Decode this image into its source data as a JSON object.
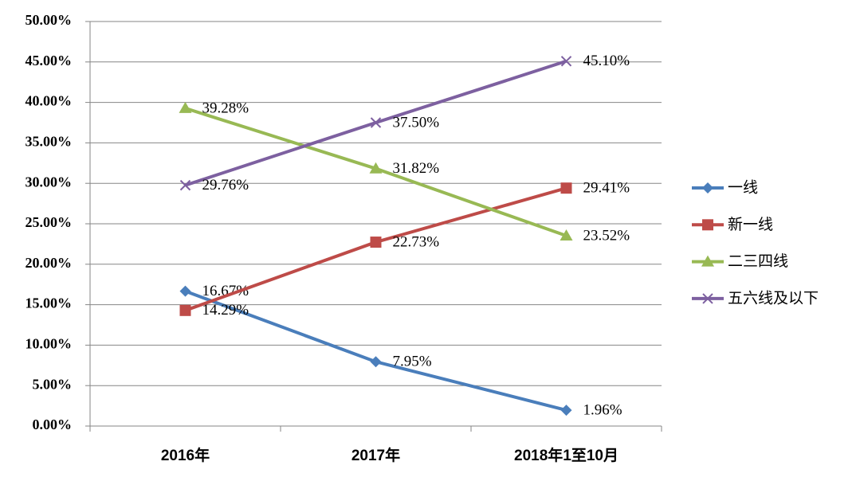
{
  "chart_data": {
    "type": "line",
    "categories": [
      "2016年",
      "2017年",
      "2018年1至10月"
    ],
    "ylim": [
      0,
      50
    ],
    "yticks": [
      {
        "value": 0,
        "label": "0.00%"
      },
      {
        "value": 5,
        "label": "5.00%"
      },
      {
        "value": 10,
        "label": "10.00%"
      },
      {
        "value": 15,
        "label": "15.00%"
      },
      {
        "value": 20,
        "label": "20.00%"
      },
      {
        "value": 25,
        "label": "25.00%"
      },
      {
        "value": 30,
        "label": "30.00%"
      },
      {
        "value": 35,
        "label": "35.00%"
      },
      {
        "value": 40,
        "label": "40.00%"
      },
      {
        "value": 45,
        "label": "45.00%"
      },
      {
        "value": 50,
        "label": "50.00%"
      }
    ],
    "grid": true,
    "legend": "right",
    "series": [
      {
        "name": "一线",
        "color": "#4a7ebb",
        "marker": "diamond",
        "values": [
          16.67,
          7.95,
          1.96
        ],
        "value_labels": [
          "16.67%",
          "7.95%",
          "1.96%"
        ]
      },
      {
        "name": "新一线",
        "color": "#be4b48",
        "marker": "square",
        "values": [
          14.29,
          22.73,
          29.41
        ],
        "value_labels": [
          "14.29%",
          "22.73%",
          "29.41%"
        ]
      },
      {
        "name": "二三四线",
        "color": "#98b954",
        "marker": "triangle",
        "values": [
          39.28,
          31.82,
          23.52
        ],
        "value_labels": [
          "39.28%",
          "31.82%",
          "23.52%"
        ]
      },
      {
        "name": "五六线及以下",
        "color": "#7d60a0",
        "marker": "x",
        "values": [
          29.76,
          37.5,
          45.1
        ],
        "value_labels": [
          "29.76%",
          "37.50%",
          "45.10%"
        ]
      }
    ]
  }
}
